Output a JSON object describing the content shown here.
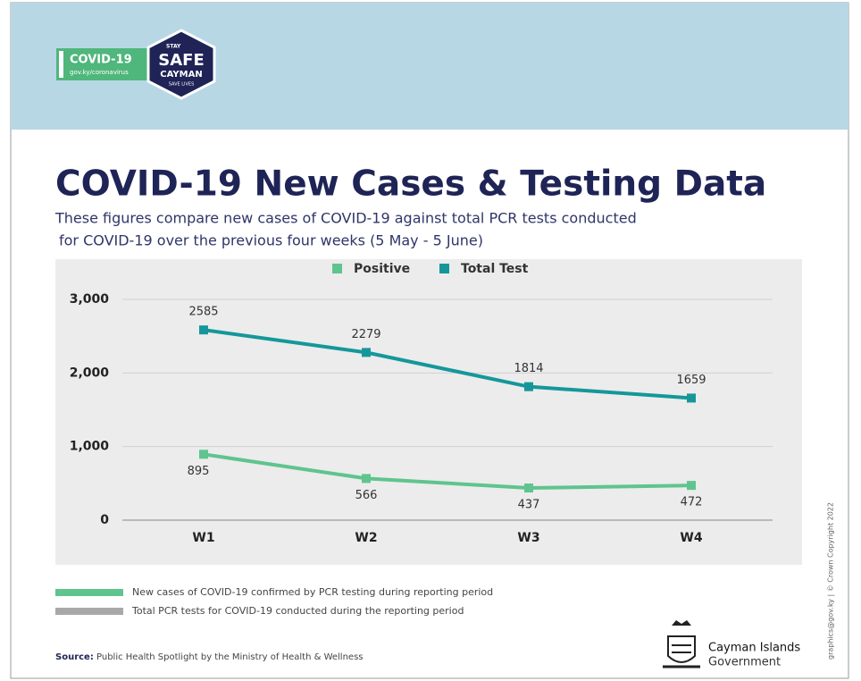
{
  "header": {
    "badge": "COVID-19",
    "url": "gov.ky/coronavirus",
    "stay": "STAY",
    "safe": "SAFE",
    "cayman": "CAYMAN",
    "save": "SAVE LIVES"
  },
  "chart_data": {
    "type": "line",
    "title": "COVID-19 New Cases & Testing Data",
    "subtitle": [
      "These figures compare new cases of COVID-19 against total PCR tests conducted",
      "for COVID-19 over the previous four weeks (5 May - 5 June)"
    ],
    "categories": [
      "W1",
      "W2",
      "W3",
      "W4"
    ],
    "series": [
      {
        "name": "Positive",
        "color": "#5fc48e",
        "values": [
          895,
          566,
          437,
          472
        ]
      },
      {
        "name": "Total Test",
        "color": "#15979a",
        "values": [
          2585,
          2279,
          1814,
          1659
        ]
      }
    ],
    "ylim": [
      0,
      3000
    ],
    "yticks": [
      {
        "value": 0,
        "label": "0"
      },
      {
        "value": 1000,
        "label": "1,000"
      },
      {
        "value": 2000,
        "label": "2,000"
      },
      {
        "value": 3000,
        "label": "3,000"
      }
    ],
    "grid": true,
    "legend": "top"
  },
  "footer": {
    "notes": [
      {
        "text": "New cases of COVID-19 confirmed by PCR testing during reporting period",
        "color": "#5fc48e"
      },
      {
        "text": "Total PCR tests for COVID-19 conducted during the reporting period",
        "color": "#a8a8a8"
      }
    ],
    "source_label": "Source:",
    "source": "Public Health Spotlight by the Ministry of Health & Wellness",
    "gov_name": "Cayman Islands",
    "gov_sub": "Government",
    "copyright": "graphics@gov.ky | © Crown Copyright 2022"
  }
}
